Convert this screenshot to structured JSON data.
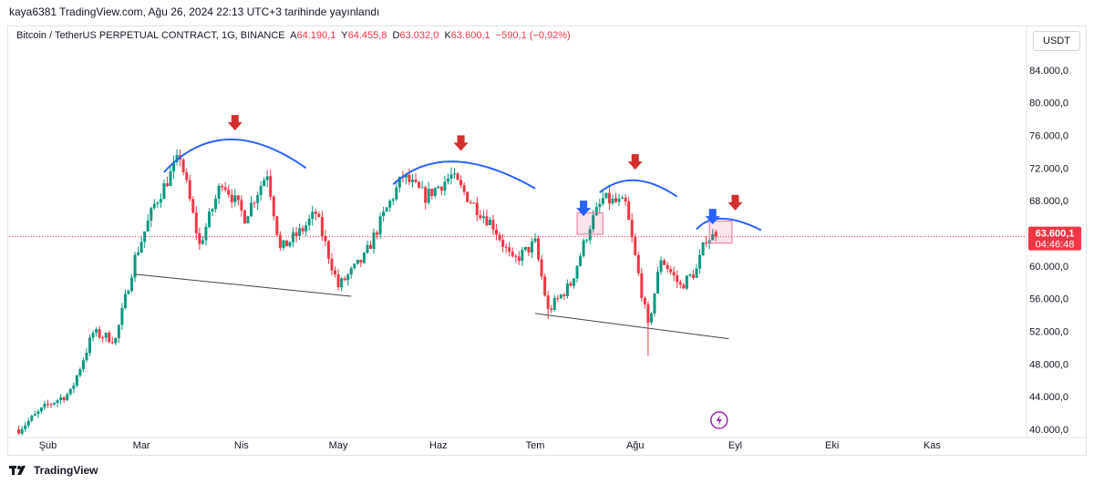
{
  "header": {
    "published": "kaya6381 TradingView.com, Ağu 26, 2024 22:13 UTC+3 tarihinde yayınlandı"
  },
  "legend": {
    "symbol": "Bitcoin / TetherUS PERPETUAL CONTRACT, 1G, BINANCE",
    "o_label": "A",
    "o_value": "64.190,1",
    "h_label": "Y",
    "h_value": "64.455,8",
    "l_label": "D",
    "l_value": "63.032,0",
    "c_label": "K",
    "c_value": "63.600,1",
    "change": "−590,1 (−0,92%)"
  },
  "currency_button": "USDT",
  "footer": {
    "brand": "TradingView",
    "logo_icon": "tradingview-logo-icon"
  },
  "colors": {
    "up": "#089981",
    "down": "#f23645",
    "arc": "#2962ff",
    "arrow_red": "#d32f2f",
    "arrow_blue": "#2962ff"
  },
  "chart_data": {
    "type": "candlestick",
    "symbol": "BTCUSDT.P",
    "timeframe": "1G",
    "ylim": [
      39000,
      87000
    ],
    "y_ticks": [
      "84.000,0",
      "80.000,0",
      "76.000,0",
      "72.000,0",
      "68.000,0",
      "64.000,0",
      "60.000,0",
      "56.000,0",
      "52.000,0",
      "48.000,0",
      "44.000,0",
      "40.000,0"
    ],
    "x_ticks": [
      "Şub",
      "Mar",
      "Nis",
      "May",
      "Haz",
      "Tem",
      "Ağu",
      "Eyl",
      "Eki",
      "Kas"
    ],
    "last_price": {
      "label": "63.600,1",
      "countdown": "04:46:48",
      "value": 63600.1
    },
    "path_points": [
      [
        "2024-01-23",
        40000
      ],
      [
        "2024-02-01",
        43000
      ],
      [
        "2024-02-08",
        44500
      ],
      [
        "2024-02-15",
        51800
      ],
      [
        "2024-02-22",
        51000
      ],
      [
        "2024-02-28",
        61000
      ],
      [
        "2024-03-05",
        67500
      ],
      [
        "2024-03-13",
        73500
      ],
      [
        "2024-03-19",
        62500
      ],
      [
        "2024-03-26",
        70500
      ],
      [
        "2024-04-02",
        66000
      ],
      [
        "2024-04-09",
        71500
      ],
      [
        "2024-04-13",
        62000
      ],
      [
        "2024-04-20",
        64500
      ],
      [
        "2024-04-24",
        66500
      ],
      [
        "2024-05-01",
        57500
      ],
      [
        "2024-05-09",
        61000
      ],
      [
        "2024-05-15",
        66200
      ],
      [
        "2024-05-21",
        71000
      ],
      [
        "2024-05-28",
        68500
      ],
      [
        "2024-06-05",
        71000
      ],
      [
        "2024-06-12",
        67500
      ],
      [
        "2024-06-18",
        65000
      ],
      [
        "2024-06-24",
        60500
      ],
      [
        "2024-07-01",
        62800
      ],
      [
        "2024-07-05",
        54500
      ],
      [
        "2024-07-12",
        57800
      ],
      [
        "2024-07-18",
        65000
      ],
      [
        "2024-07-22",
        68200
      ],
      [
        "2024-07-29",
        67500
      ],
      [
        "2024-08-05",
        52500
      ],
      [
        "2024-08-09",
        61000
      ],
      [
        "2024-08-15",
        57500
      ],
      [
        "2024-08-20",
        59500
      ],
      [
        "2024-08-23",
        63500
      ],
      [
        "2024-08-26",
        63600
      ]
    ],
    "support_lines": [
      {
        "from": [
          "2024-02-28",
          59000
        ],
        "to": [
          "2024-05-05",
          56300
        ]
      },
      {
        "from": [
          "2024-07-01",
          54200
        ],
        "to": [
          "2024-08-30",
          51100
        ]
      }
    ],
    "arcs": [
      {
        "from": [
          "2024-03-08",
          71500
        ],
        "peak": [
          "2024-03-28",
          75500
        ],
        "to": [
          "2024-04-21",
          72000
        ]
      },
      {
        "from": [
          "2024-05-18",
          70000
        ],
        "peak": [
          "2024-06-06",
          72800
        ],
        "to": [
          "2024-07-01",
          69500
        ]
      },
      {
        "from": [
          "2024-07-21",
          69000
        ],
        "peak": [
          "2024-08-01",
          70500
        ],
        "to": [
          "2024-08-14",
          68500
        ]
      },
      {
        "from": [
          "2024-08-20",
          64500
        ],
        "peak": [
          "2024-08-28",
          65800
        ],
        "to": [
          "2024-09-09",
          64400
        ]
      }
    ],
    "down_arrows_red": [
      [
        "2024-03-30",
        77500
      ],
      [
        "2024-06-08",
        75000
      ],
      [
        "2024-08-01",
        72700
      ],
      [
        "2024-09-01",
        67700
      ]
    ],
    "down_arrows_blue": [
      [
        "2024-07-16",
        67000
      ],
      [
        "2024-08-25",
        66000
      ]
    ],
    "boxes": [
      {
        "from": [
          "2024-07-14",
          66500
        ],
        "to": [
          "2024-07-22",
          63900
        ]
      },
      {
        "from": [
          "2024-08-24",
          65500
        ],
        "to": [
          "2024-08-31",
          62800
        ]
      }
    ]
  }
}
